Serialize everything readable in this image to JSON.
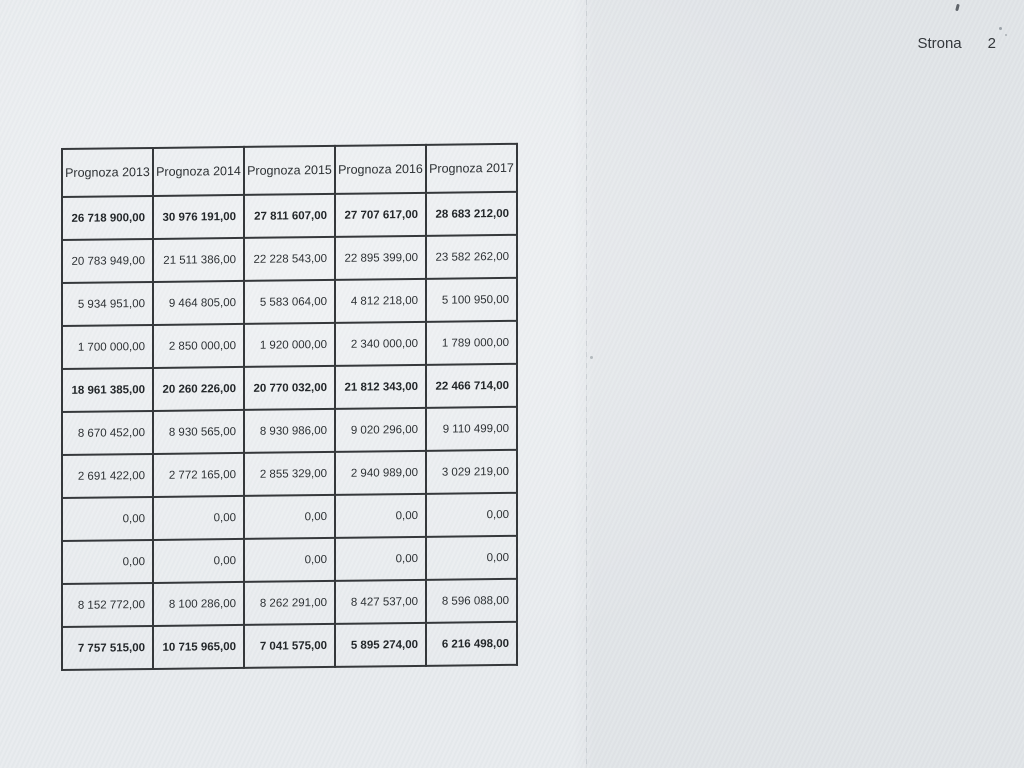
{
  "page": {
    "label": "Strona",
    "number": "2"
  },
  "table": {
    "columns": [
      "Prognoza 2013",
      "Prognoza 2014",
      "Prognoza 2015",
      "Prognoza 2016",
      "Prognoza 2017"
    ],
    "rows": [
      {
        "bold": true,
        "values": [
          "26 718 900,00",
          "30 976 191,00",
          "27 811 607,00",
          "27 707 617,00",
          "28 683 212,00"
        ]
      },
      {
        "bold": false,
        "values": [
          "20 783 949,00",
          "21 511 386,00",
          "22 228 543,00",
          "22 895 399,00",
          "23 582 262,00"
        ]
      },
      {
        "bold": false,
        "values": [
          "5 934 951,00",
          "9 464 805,00",
          "5 583 064,00",
          "4 812 218,00",
          "5 100 950,00"
        ]
      },
      {
        "bold": false,
        "values": [
          "1 700 000,00",
          "2 850 000,00",
          "1 920 000,00",
          "2 340 000,00",
          "1 789 000,00"
        ]
      },
      {
        "bold": true,
        "values": [
          "18 961 385,00",
          "20 260 226,00",
          "20 770 032,00",
          "21 812 343,00",
          "22 466 714,00"
        ]
      },
      {
        "bold": false,
        "values": [
          "8 670 452,00",
          "8 930 565,00",
          "8 930 986,00",
          "9 020 296,00",
          "9 110 499,00"
        ]
      },
      {
        "bold": false,
        "values": [
          "2 691 422,00",
          "2 772 165,00",
          "2 855 329,00",
          "2 940 989,00",
          "3 029 219,00"
        ]
      },
      {
        "bold": false,
        "values": [
          "0,00",
          "0,00",
          "0,00",
          "0,00",
          "0,00"
        ]
      },
      {
        "bold": false,
        "values": [
          "0,00",
          "0,00",
          "0,00",
          "0,00",
          "0,00"
        ]
      },
      {
        "bold": false,
        "values": [
          "8 152 772,00",
          "8 100 286,00",
          "8 262 291,00",
          "8 427 537,00",
          "8 596 088,00"
        ]
      },
      {
        "bold": true,
        "values": [
          "7 757 515,00",
          "10 715 965,00",
          "7 041 575,00",
          "5 895 274,00",
          "6 216 498,00"
        ]
      }
    ]
  },
  "colors": {
    "paper": "#e8ebee",
    "ink": "#2c3033",
    "border": "#35383b"
  }
}
